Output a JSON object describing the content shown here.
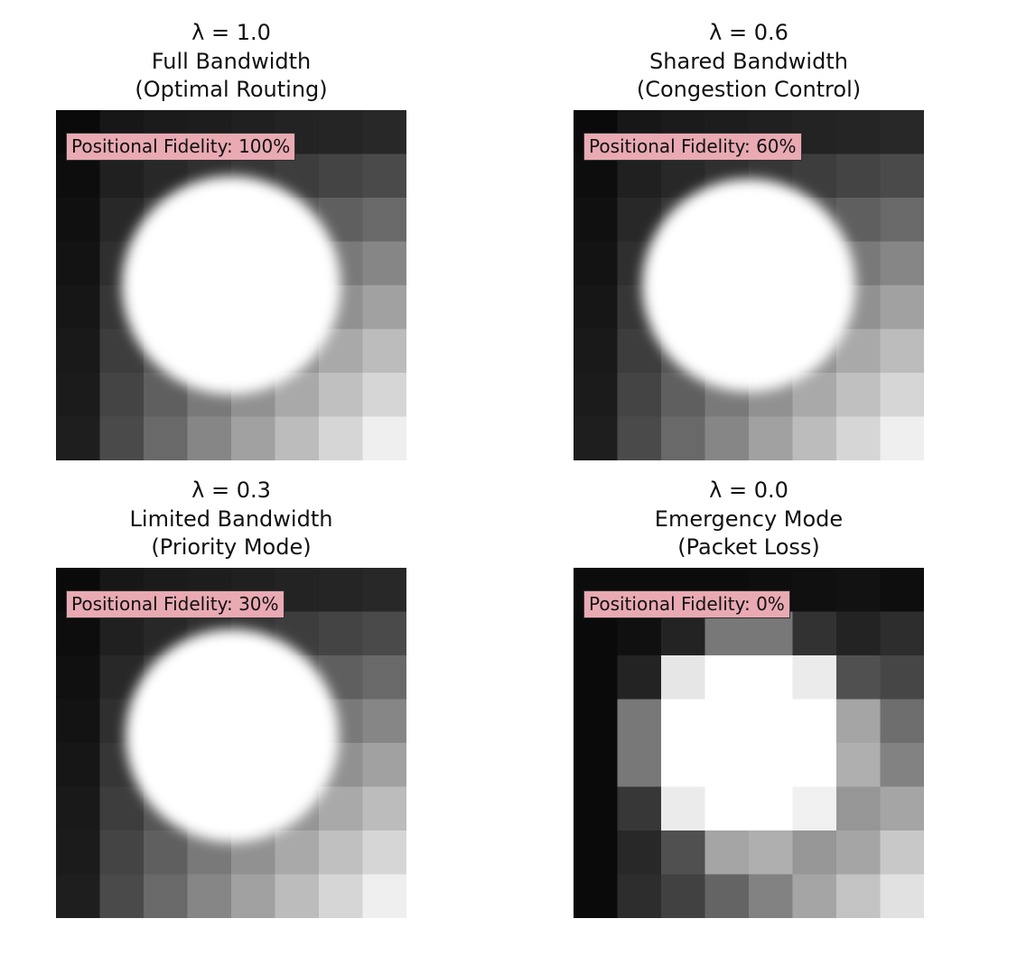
{
  "panels": [
    {
      "title_lines": [
        "λ = 1.0",
        "Full Bandwidth",
        "(Optimal Routing)"
      ],
      "badge": "Positional Fidelity: 100%"
    },
    {
      "title_lines": [
        "λ = 0.6",
        "Shared Bandwidth",
        "(Congestion Control)"
      ],
      "badge": "Positional Fidelity: 60%"
    },
    {
      "title_lines": [
        "λ = 0.3",
        "Limited Bandwidth",
        "(Priority Mode)"
      ],
      "badge": "Positional Fidelity: 30%"
    },
    {
      "title_lines": [
        "λ = 0.0",
        "Emergency Mode",
        "(Packet Loss)"
      ],
      "badge": "Positional Fidelity: 0%"
    }
  ]
}
